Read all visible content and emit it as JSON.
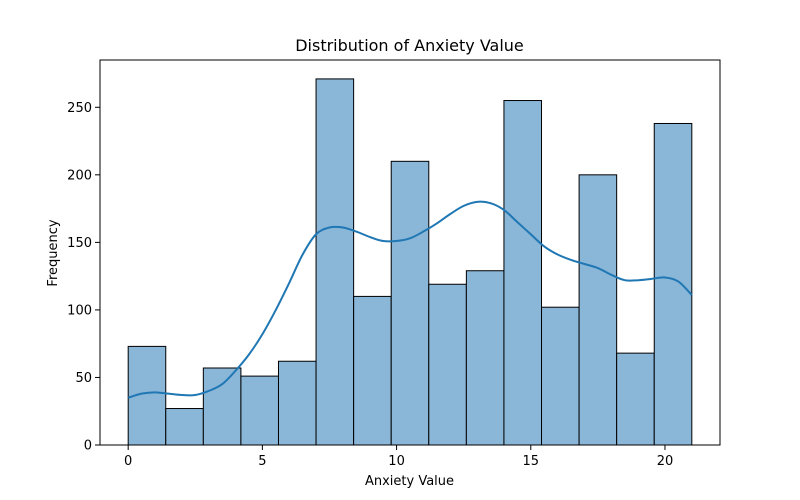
{
  "chart_data": {
    "type": "bar",
    "subtype": "histogram_with_kde",
    "title": "Distribution of Anxiety Value",
    "xlabel": "Anxiety Value",
    "ylabel": "Frequency",
    "xlim": [
      -1.05,
      22.05
    ],
    "ylim": [
      0,
      285
    ],
    "x_ticks": [
      0,
      5,
      10,
      15,
      20
    ],
    "y_ticks": [
      0,
      50,
      100,
      150,
      200,
      250
    ],
    "grid": false,
    "bar_color": "#8ab6d8",
    "bar_edge_color": "#000000",
    "kde_color": "#1f77b4",
    "bins": [
      {
        "start": 0.0,
        "end": 1.4,
        "value": 73
      },
      {
        "start": 1.4,
        "end": 2.8,
        "value": 27
      },
      {
        "start": 2.8,
        "end": 4.2,
        "value": 57
      },
      {
        "start": 4.2,
        "end": 5.6,
        "value": 51
      },
      {
        "start": 5.6,
        "end": 7.0,
        "value": 62
      },
      {
        "start": 7.0,
        "end": 8.4,
        "value": 271
      },
      {
        "start": 8.4,
        "end": 9.8,
        "value": 110
      },
      {
        "start": 9.8,
        "end": 11.2,
        "value": 210
      },
      {
        "start": 11.2,
        "end": 12.6,
        "value": 119
      },
      {
        "start": 12.6,
        "end": 14.0,
        "value": 129
      },
      {
        "start": 14.0,
        "end": 15.4,
        "value": 255
      },
      {
        "start": 15.4,
        "end": 16.8,
        "value": 102
      },
      {
        "start": 16.8,
        "end": 18.2,
        "value": 200
      },
      {
        "start": 18.2,
        "end": 19.6,
        "value": 68
      },
      {
        "start": 19.6,
        "end": 21.0,
        "value": 238
      }
    ],
    "kde": {
      "x": [
        0,
        0.5,
        1,
        1.5,
        2,
        2.5,
        3,
        3.5,
        4,
        4.5,
        5,
        5.5,
        6,
        6.5,
        7,
        7.5,
        8,
        8.5,
        9,
        9.5,
        10,
        10.5,
        11,
        11.5,
        12,
        12.5,
        13,
        13.5,
        14,
        14.5,
        15,
        15.5,
        16,
        16.5,
        17,
        17.5,
        18,
        18.5,
        19,
        19.5,
        20,
        20.5,
        21
      ],
      "y": [
        35,
        38,
        39,
        38,
        37,
        37,
        40,
        45,
        55,
        67,
        82,
        100,
        120,
        141,
        156,
        161,
        161,
        158,
        154,
        151,
        151,
        153,
        158,
        164,
        171,
        177,
        180,
        179,
        174,
        165,
        156,
        147,
        141,
        137,
        134,
        131,
        126,
        122,
        122,
        123,
        124,
        121,
        111
      ]
    }
  }
}
